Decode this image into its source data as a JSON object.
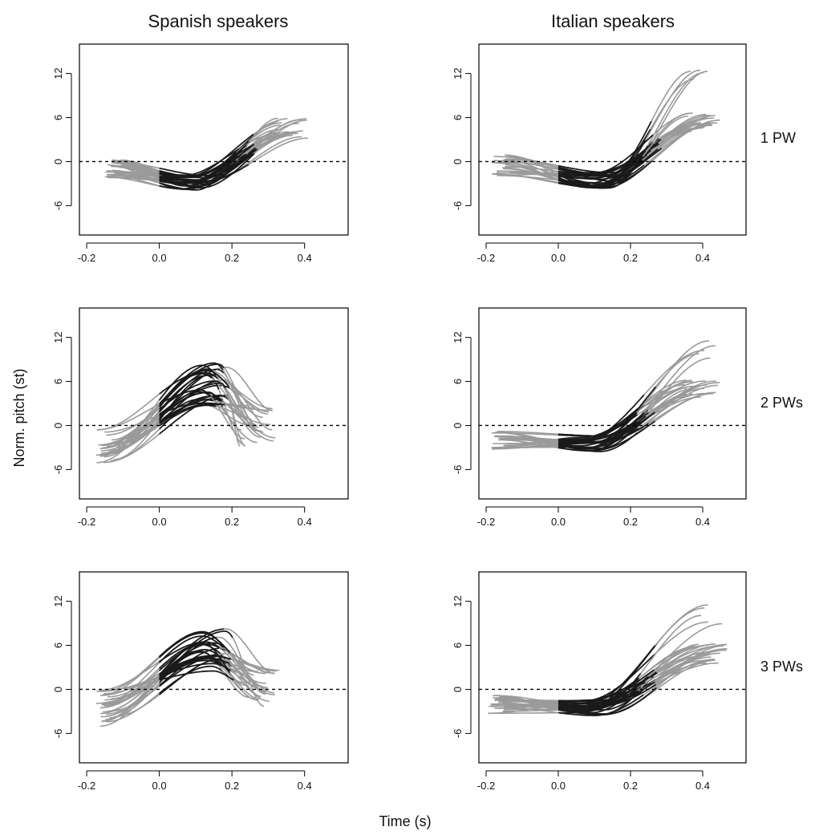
{
  "figure": {
    "column_titles": [
      "Spanish speakers",
      "Italian speakers"
    ],
    "row_labels": [
      "1 PW",
      "2 PWs",
      "3 PWs"
    ],
    "ylabel": "Norm. pitch (st)",
    "xlabel": "Time (s)"
  },
  "colors": {
    "pre_post_segment": "#9a9a9a",
    "core_segment": "#1a1a1a",
    "axes": "#000000"
  },
  "chart_data": [
    {
      "type": "line",
      "panel": "Spanish speakers / 1 PW",
      "xlim": [
        -0.22,
        0.52
      ],
      "ylim": [
        -10,
        16
      ],
      "x_ticks": [
        "-0.2",
        "0.0",
        "0.2",
        "0.4"
      ],
      "y_ticks": [
        "-6",
        "0",
        "6",
        "12"
      ],
      "reference_line_y": 0,
      "profile": {
        "start_x": -0.13,
        "start_y": -1.0,
        "min_x": 0.1,
        "min_y": -2.8,
        "end_x": 0.36,
        "end_y": 4.5,
        "black_from_x": 0.0,
        "black_to_x": 0.24,
        "spread": 0.9,
        "curves": 28
      }
    },
    {
      "type": "line",
      "panel": "Italian speakers / 1 PW",
      "xlim": [
        -0.22,
        0.52
      ],
      "ylim": [
        -10,
        16
      ],
      "x_ticks": [
        "-0.2",
        "0.0",
        "0.2",
        "0.4"
      ],
      "y_ticks": [
        "-6",
        "0",
        "6",
        "12"
      ],
      "reference_line_y": 0,
      "profile": {
        "start_x": -0.16,
        "start_y": -0.5,
        "min_x": 0.12,
        "min_y": -2.5,
        "end_x": 0.4,
        "end_y": 5.0,
        "black_from_x": 0.0,
        "black_to_x": 0.26,
        "spread": 1.0,
        "curves": 28,
        "high_end_y": 13.5
      }
    },
    {
      "type": "line",
      "panel": "Spanish speakers / 2 PWs",
      "xlim": [
        -0.22,
        0.52
      ],
      "ylim": [
        -10,
        16
      ],
      "x_ticks": [
        "-0.2",
        "0.0",
        "0.2",
        "0.4"
      ],
      "y_ticks": [
        "-6",
        "0",
        "6",
        "12"
      ],
      "reference_line_y": 0,
      "profile": {
        "start_x": -0.15,
        "start_y": -3.0,
        "peak_x": 0.15,
        "peak_y": 5.5,
        "end_x": 0.27,
        "end_y": 0.0,
        "black_from_x": 0.0,
        "black_to_x": 0.17,
        "spread": 1.8,
        "curves": 28
      }
    },
    {
      "type": "line",
      "panel": "Italian speakers / 2 PWs",
      "xlim": [
        -0.22,
        0.52
      ],
      "ylim": [
        -10,
        16
      ],
      "x_ticks": [
        "-0.2",
        "0.0",
        "0.2",
        "0.4"
      ],
      "y_ticks": [
        "-6",
        "0",
        "6",
        "12"
      ],
      "reference_line_y": 0,
      "profile": {
        "start_x": -0.16,
        "start_y": -2.0,
        "min_x": 0.1,
        "min_y": -2.5,
        "end_x": 0.4,
        "end_y": 5.0,
        "black_from_x": 0.0,
        "black_to_x": 0.24,
        "spread": 0.9,
        "curves": 26,
        "high_end_y": 12.0
      }
    },
    {
      "type": "line",
      "panel": "Spanish speakers / 3 PWs",
      "xlim": [
        -0.22,
        0.52
      ],
      "ylim": [
        -10,
        16
      ],
      "x_ticks": [
        "-0.2",
        "0.0",
        "0.2",
        "0.4"
      ],
      "y_ticks": [
        "-6",
        "0",
        "6",
        "12"
      ],
      "reference_line_y": 0,
      "profile": {
        "start_x": -0.15,
        "start_y": -2.5,
        "peak_x": 0.15,
        "peak_y": 5.5,
        "end_x": 0.28,
        "end_y": 0.0,
        "black_from_x": 0.0,
        "black_to_x": 0.18,
        "spread": 1.8,
        "curves": 28
      }
    },
    {
      "type": "line",
      "panel": "Italian speakers / 3 PWs",
      "xlim": [
        -0.22,
        0.52
      ],
      "ylim": [
        -10,
        16
      ],
      "x_ticks": [
        "-0.2",
        "0.0",
        "0.2",
        "0.4"
      ],
      "y_ticks": [
        "-6",
        "0",
        "6",
        "12"
      ],
      "reference_line_y": 0,
      "profile": {
        "start_x": -0.17,
        "start_y": -2.0,
        "min_x": 0.1,
        "min_y": -2.5,
        "end_x": 0.42,
        "end_y": 5.0,
        "black_from_x": 0.0,
        "black_to_x": 0.25,
        "spread": 0.9,
        "curves": 28,
        "high_end_y": 11.5
      }
    }
  ]
}
